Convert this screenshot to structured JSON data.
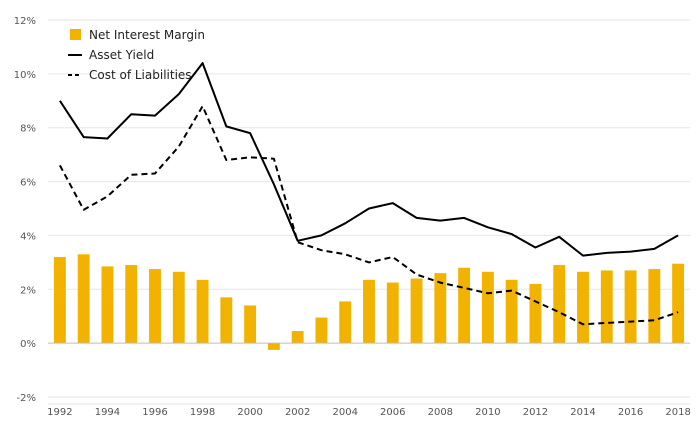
{
  "chart_data": {
    "type": "bar+line",
    "title": "",
    "xlabel": "",
    "ylabel": "",
    "ylim": [
      -2,
      12
    ],
    "y_ticks": [
      "-2%",
      "0%",
      "2%",
      "4%",
      "6%",
      "8%",
      "10%",
      "12%"
    ],
    "x_ticks": [
      "1992",
      "1994",
      "1996",
      "1998",
      "2000",
      "2002",
      "2004",
      "2006",
      "2008",
      "2010",
      "2012",
      "2014",
      "2016",
      "2018"
    ],
    "grid": true,
    "legend_position": "top-left",
    "x": [
      1992,
      1993,
      1994,
      1995,
      1996,
      1997,
      1998,
      1999,
      2000,
      2001,
      2002,
      2003,
      2004,
      2005,
      2006,
      2007,
      2008,
      2009,
      2010,
      2011,
      2012,
      2013,
      2014,
      2015,
      2016,
      2017,
      2018
    ],
    "series": [
      {
        "name": "Net Interest Margin",
        "kind": "bar",
        "color": "#f2b300",
        "values": [
          3.2,
          3.3,
          2.85,
          2.9,
          2.75,
          2.65,
          2.35,
          1.7,
          1.4,
          -0.25,
          0.45,
          0.95,
          1.55,
          2.35,
          2.25,
          2.4,
          2.6,
          2.8,
          2.65,
          2.35,
          2.2,
          2.9,
          2.65,
          2.7,
          2.7,
          2.75,
          2.95
        ]
      },
      {
        "name": "Asset Yield",
        "kind": "line",
        "style": "solid",
        "color": "#000000",
        "values": [
          9.0,
          7.65,
          7.6,
          8.5,
          8.45,
          9.25,
          10.4,
          8.05,
          7.8,
          5.9,
          3.8,
          4.0,
          4.45,
          5.0,
          5.2,
          4.65,
          4.55,
          4.65,
          4.3,
          4.05,
          3.55,
          3.95,
          3.25,
          3.35,
          3.4,
          3.5,
          4.0
        ]
      },
      {
        "name": "Cost of Liabilities",
        "kind": "line",
        "style": "dashed",
        "color": "#000000",
        "values": [
          6.6,
          4.95,
          5.45,
          6.25,
          6.3,
          7.3,
          8.8,
          6.8,
          6.9,
          6.85,
          3.75,
          3.45,
          3.3,
          3.0,
          3.2,
          2.55,
          2.25,
          2.05,
          1.85,
          1.95,
          1.55,
          1.15,
          0.7,
          0.75,
          0.8,
          0.85,
          1.15
        ]
      }
    ]
  }
}
